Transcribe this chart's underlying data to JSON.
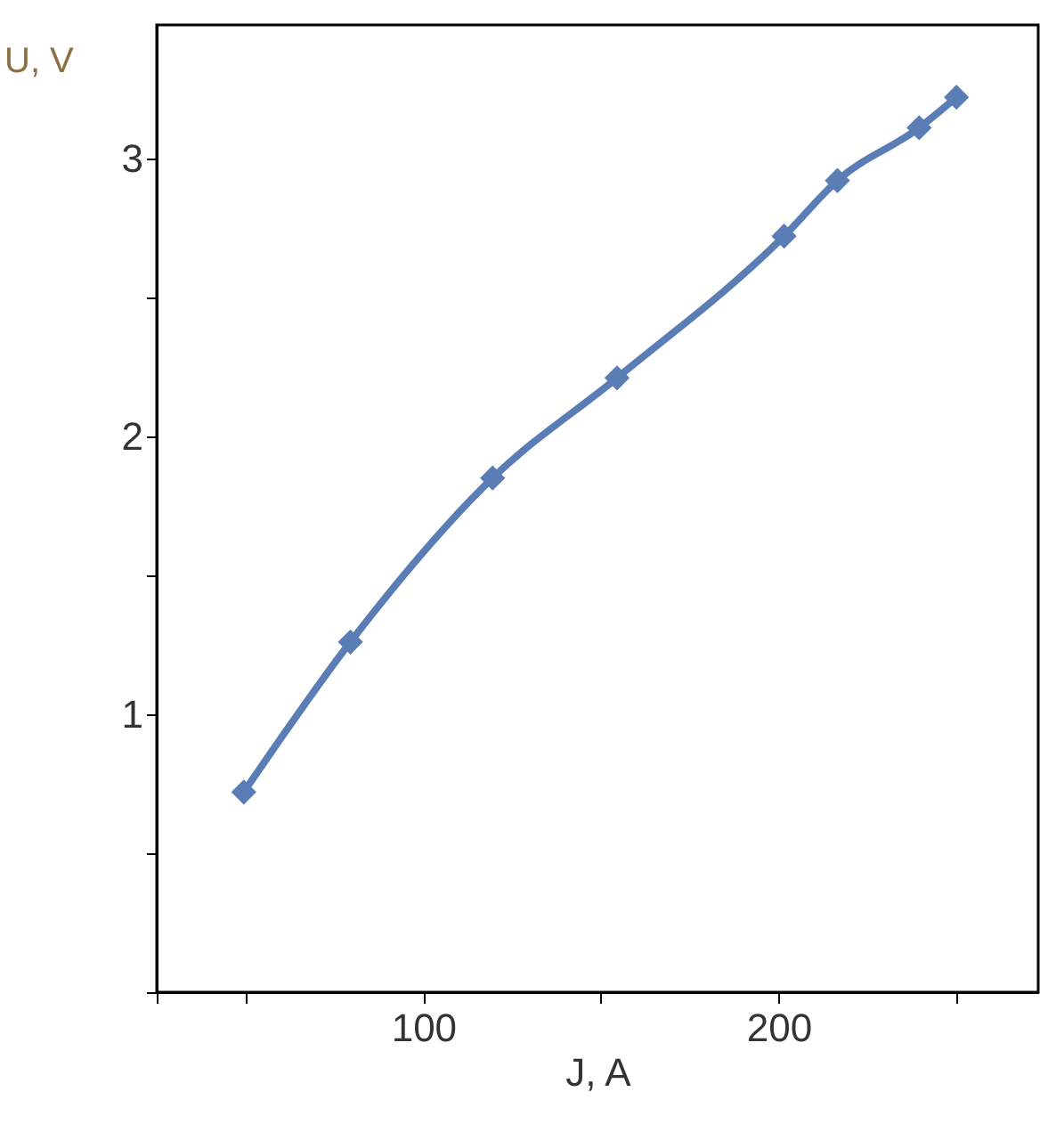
{
  "chart_data": {
    "type": "line",
    "xlabel": "J, A",
    "ylabel": "U, V",
    "x": [
      49.5,
      79.5,
      119.5,
      154.5,
      201.5,
      216.5,
      239.5,
      250
    ],
    "series": [
      {
        "color": "#5b7db5",
        "values": [
          0.72,
          1.26,
          1.85,
          2.21,
          2.72,
          2.92,
          3.11,
          3.22
        ]
      }
    ],
    "xlim": [
      25,
      273
    ],
    "xticks": [
      {
        "value": 25,
        "label": null
      },
      {
        "value": 50,
        "label": null
      },
      100,
      {
        "value": 150,
        "label": null
      },
      200,
      {
        "value": 250,
        "label": null
      }
    ],
    "ylim": [
      0,
      3.48
    ],
    "yticks": [
      {
        "value": 0,
        "label": null
      },
      {
        "value": 0.5,
        "label": null
      },
      1,
      {
        "value": 1.5,
        "label": null
      },
      2,
      {
        "value": 2.5,
        "label": null
      },
      3
    ],
    "grid": false,
    "marker": "diamond",
    "line_style": "solid"
  }
}
